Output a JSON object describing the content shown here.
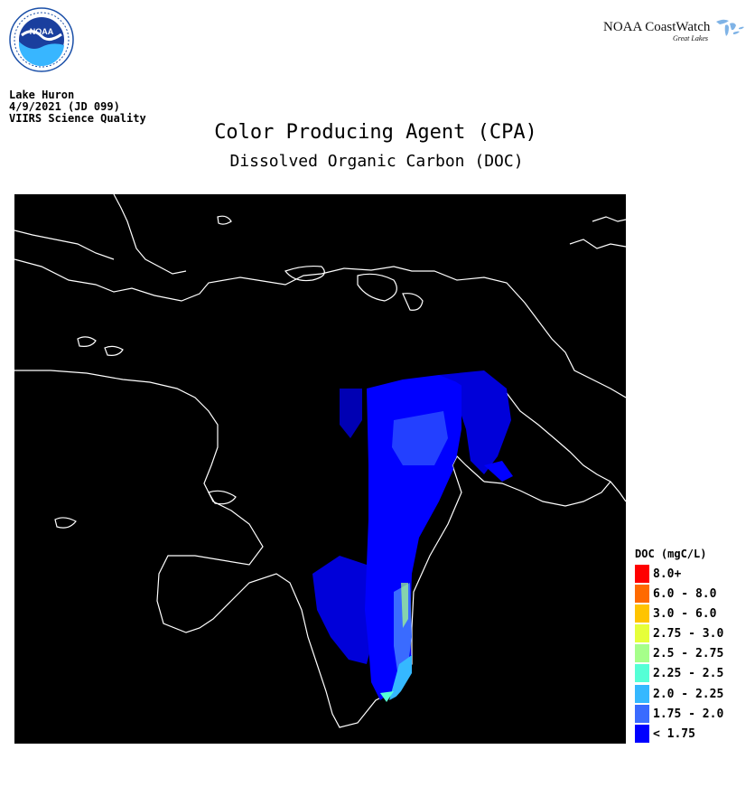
{
  "header": {
    "agency_logo_text": "NOAA",
    "brand": "NOAA CoastWatch",
    "brand_sub": "Great Lakes"
  },
  "meta": {
    "lake": "Lake Huron",
    "date": "4/9/2021 (JD 099)",
    "quality": "VIIRS Science Quality"
  },
  "title": "Color Producing Agent (CPA)",
  "subtitle": "Dissolved Organic Carbon (DOC)",
  "legend": {
    "title": "DOC (mgC/L)",
    "items": [
      {
        "label": "8.0+",
        "color": "#ff0000"
      },
      {
        "label": "6.0 - 8.0",
        "color": "#ff6a00"
      },
      {
        "label": "3.0 - 6.0",
        "color": "#ffc400"
      },
      {
        "label": "2.75 - 3.0",
        "color": "#e6ff3a"
      },
      {
        "label": "2.5 - 2.75",
        "color": "#a6ff8a"
      },
      {
        "label": "2.25 - 2.5",
        "color": "#55ffd6"
      },
      {
        "label": "2.0 - 2.25",
        "color": "#35b8ff"
      },
      {
        "label": "1.75 - 2.0",
        "color": "#3a6bff"
      },
      {
        "label": "< 1.75",
        "color": "#0000ff"
      }
    ]
  },
  "colors": {
    "background": "#ffffff",
    "map_background": "#000000",
    "coastline": "#ffffff",
    "noaa_blue": "#1a4fa8"
  }
}
